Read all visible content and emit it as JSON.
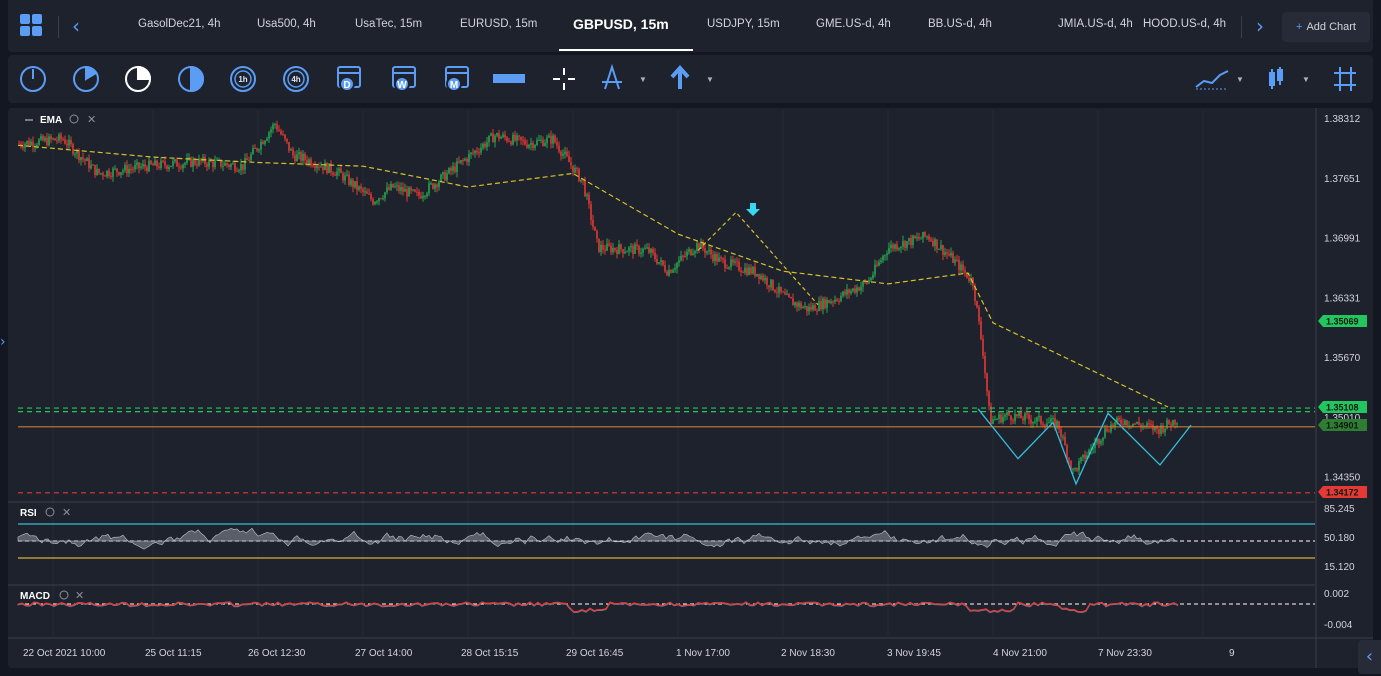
{
  "tabs": [
    {
      "label": "GasolDec21, 4h"
    },
    {
      "label": "Usa500, 4h"
    },
    {
      "label": "UsaTec, 15m"
    },
    {
      "label": "EURUSD, 15m"
    },
    {
      "label": "GBPUSD, 15m",
      "active": true
    },
    {
      "label": "USDJPY, 15m"
    },
    {
      "label": "GME.US-d, 4h"
    },
    {
      "label": "BB.US-d, 4h"
    },
    {
      "label": "JMIA.US-d, 4h"
    },
    {
      "label": "HOOD.US-d, 4h"
    }
  ],
  "add_chart_label": "Add Chart",
  "toolbar_icons": [
    "clock-icon",
    "clock-icon",
    "clock-icon",
    "clock-icon",
    "clock-1h-icon",
    "clock-4h-icon",
    "calendar-d-icon",
    "calendar-w-icon",
    "calendar-m-icon",
    "ruler-icon",
    "crosshair-icon",
    "compass-icon",
    "arrow-up-icon",
    "chart-type-icon",
    "candles-icon",
    "grid-icon"
  ],
  "timeframe_labels": {
    "h1": "1h",
    "h4": "4h",
    "d": "D",
    "w": "W",
    "m": "M"
  },
  "panels": {
    "main_label": "EMA",
    "rsi_label": "RSI",
    "macd_label": "MACD"
  },
  "price_axis": [
    "1.38312",
    "1.37651",
    "1.36991",
    "1.36331",
    "1.35670",
    "1.35010",
    "1.34350"
  ],
  "price_badges": [
    {
      "value": "1.35069",
      "color": "#22c55e"
    },
    {
      "value": "1.35108",
      "color": "#22c55e"
    },
    {
      "value": "1.34901",
      "color": "#2e7d32"
    },
    {
      "value": "1.34172",
      "color": "#e53935"
    }
  ],
  "rsi_axis": [
    "85.245",
    "50.180",
    "15.120"
  ],
  "macd_axis": [
    "0.002",
    "-0.004"
  ],
  "time_axis": [
    "22 Oct 2021 10:00",
    "25 Oct 11:15",
    "26 Oct 12:30",
    "27 Oct 14:00",
    "28 Oct 15:15",
    "29 Oct 16:45",
    "1 Nov 17:00",
    "2 Nov 18:30",
    "3 Nov 19:45",
    "4 Nov 21:00",
    "7 Nov 23:30",
    "9"
  ],
  "colors": {
    "bull": "#26a650",
    "bear": "#e53935",
    "ema": "#d4c22c",
    "accent": "#5b9cf5",
    "pattern": "#38bdd8",
    "rsi_band": "#38bdd8"
  },
  "chart_data": {
    "type": "candlestick",
    "title": "GBPUSD, 15m",
    "x_range": [
      "22 Oct 2021 10:00",
      "9 Nov 2021"
    ],
    "ylim": [
      1.3417,
      1.3831
    ],
    "close_path": [
      [
        "22 Oct 10:00",
        1.3803
      ],
      [
        "22 Oct 20:00",
        1.3808
      ],
      [
        "25 Oct 02:00",
        1.377
      ],
      [
        "25 Oct 11:15",
        1.3778
      ],
      [
        "25 Oct 20:00",
        1.3783
      ],
      [
        "26 Oct 08:00",
        1.3778
      ],
      [
        "26 Oct 12:30",
        1.3825
      ],
      [
        "26 Oct 18:00",
        1.379
      ],
      [
        "27 Oct 02:00",
        1.3785
      ],
      [
        "27 Oct 08:00",
        1.3771
      ],
      [
        "27 Oct 14:00",
        1.374
      ],
      [
        "27 Oct 22:00",
        1.3755
      ],
      [
        "28 Oct 06:00",
        1.3745
      ],
      [
        "28 Oct 12:00",
        1.377
      ],
      [
        "28 Oct 15:15",
        1.3812
      ],
      [
        "29 Oct 03:00",
        1.3803
      ],
      [
        "29 Oct 10:00",
        1.3808
      ],
      [
        "29 Oct 16:45",
        1.376
      ],
      [
        "29 Oct 20:00",
        1.3688
      ],
      [
        "1 Nov 06:00",
        1.3685
      ],
      [
        "1 Nov 12:00",
        1.3662
      ],
      [
        "1 Nov 17:00",
        1.3692
      ],
      [
        "2 Nov 00:00",
        1.3673
      ],
      [
        "2 Nov 08:00",
        1.366
      ],
      [
        "2 Nov 13:00",
        1.363
      ],
      [
        "2 Nov 18:30",
        1.362
      ],
      [
        "3 Nov 02:00",
        1.3633
      ],
      [
        "3 Nov 08:00",
        1.365
      ],
      [
        "3 Nov 14:00",
        1.3688
      ],
      [
        "3 Nov 19:45",
        1.3701
      ],
      [
        "3 Nov 23:00",
        1.3675
      ],
      [
        "4 Nov 06:00",
        1.365
      ],
      [
        "4 Nov 09:00",
        1.3573
      ],
      [
        "4 Nov 14:00",
        1.3497
      ],
      [
        "4 Nov 21:00",
        1.3503
      ],
      [
        "5 Nov 06:00",
        1.3497
      ],
      [
        "5 Nov 12:00",
        1.3493
      ],
      [
        "5 Nov 16:00",
        1.344
      ],
      [
        "5 Nov 20:00",
        1.349
      ],
      [
        "7 Nov 23:30",
        1.3497
      ],
      [
        "8 Nov 06:00",
        1.3487
      ],
      [
        "8 Nov 10:00",
        1.3499
      ]
    ],
    "ema_path": [
      [
        "22 Oct 10:00",
        1.3801
      ],
      [
        "25 Oct 11:15",
        1.3788
      ],
      [
        "26 Oct 12:30",
        1.3782
      ],
      [
        "27 Oct 14:00",
        1.3778
      ],
      [
        "28 Oct 15:15",
        1.3755
      ],
      [
        "29 Oct 16:45",
        1.377
      ],
      [
        "1 Nov 17:00",
        1.3703
      ],
      [
        "2 Nov 18:30",
        1.3662
      ],
      [
        "3 Nov 19:45",
        1.3648
      ],
      [
        "4 Nov 06:00",
        1.366
      ],
      [
        "4 Nov 21:00",
        1.3605
      ],
      [
        "7 Nov 23:30",
        1.3512
      ]
    ],
    "horizontal_lines": [
      {
        "value": 1.35069,
        "style": "dashed",
        "color": "#22c55e"
      },
      {
        "value": 1.35108,
        "style": "dashed",
        "color": "#22c55e"
      },
      {
        "value": 1.34901,
        "style": "solid",
        "color": "#c77c33"
      },
      {
        "value": 1.34172,
        "style": "dashed",
        "color": "#e53935"
      }
    ],
    "rsi": {
      "ylim": [
        15.12,
        85.245
      ],
      "levels": [
        70,
        50.18,
        30
      ]
    },
    "macd": {
      "ylim": [
        -0.004,
        0.002
      ]
    }
  }
}
